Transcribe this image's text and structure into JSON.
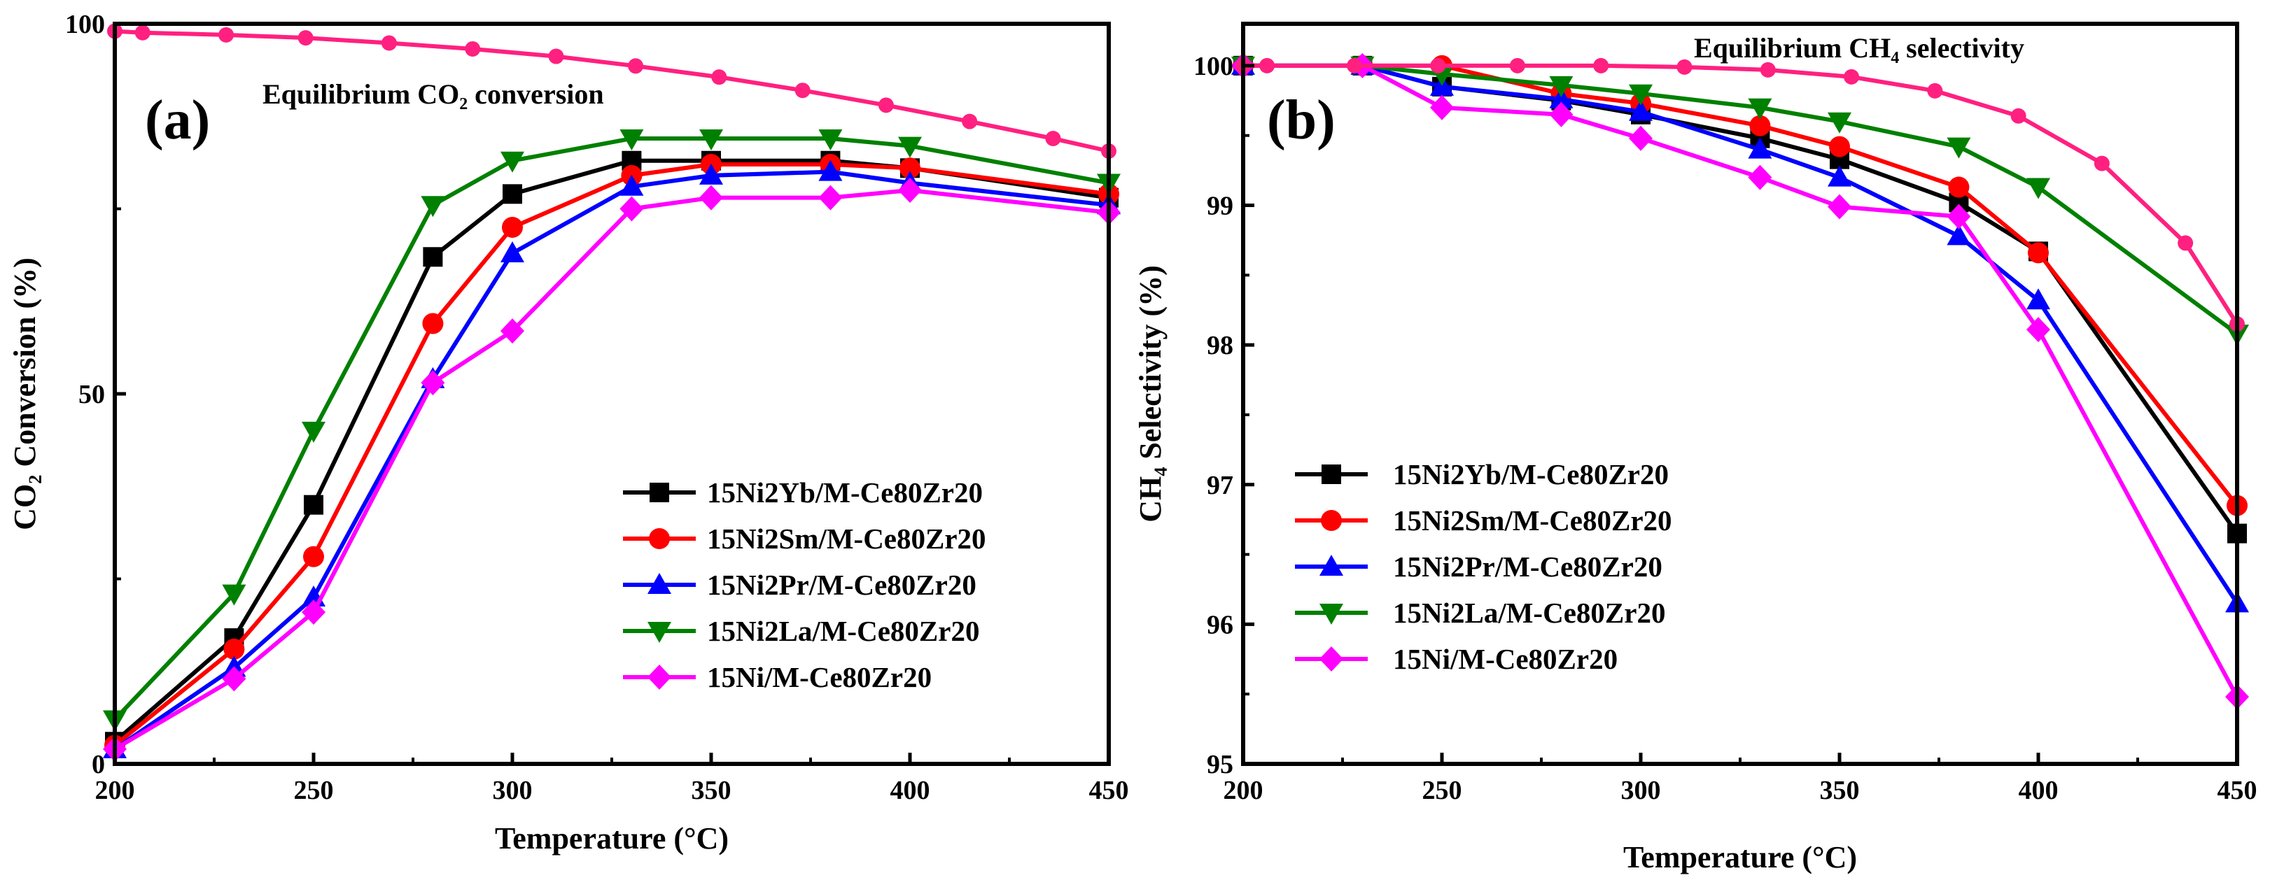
{
  "chart_data": [
    {
      "panel": "(a)",
      "type": "line",
      "title": "",
      "annotation": "Equilibrium CO₂ conversion",
      "xlabel": "Temperature (°C)",
      "ylabel": "CO₂ Conversion (%)",
      "xlim": [
        200,
        450
      ],
      "ylim": [
        0,
        100
      ],
      "xticks": [
        "200",
        "250",
        "300",
        "350",
        "400",
        "450"
      ],
      "yticks": [
        "0",
        "50",
        "100"
      ],
      "legend_position": "bottom-right",
      "series": [
        {
          "name": "15Ni2Yb/M-Ce80Zr20",
          "color": "#000000",
          "marker": "square",
          "x": [
            200,
            230,
            250,
            280,
            300,
            330,
            350,
            380,
            400,
            450
          ],
          "y": [
            3,
            17,
            35,
            68.5,
            77,
            81.5,
            81.5,
            81.5,
            80.5,
            76.5
          ]
        },
        {
          "name": "15Ni2Sm/M-Ce80Zr20",
          "color": "#ff0000",
          "marker": "circle",
          "x": [
            200,
            230,
            250,
            280,
            300,
            330,
            350,
            380,
            400,
            450
          ],
          "y": [
            2.5,
            15.5,
            28,
            59.5,
            72.5,
            79.5,
            81,
            81,
            80.5,
            77
          ]
        },
        {
          "name": "15Ni2Pr/M-Ce80Zr20",
          "color": "#0000ff",
          "marker": "triangle-up",
          "x": [
            200,
            230,
            250,
            280,
            300,
            330,
            350,
            380,
            400,
            450
          ],
          "y": [
            2,
            13,
            22.5,
            52,
            69,
            78,
            79.5,
            80,
            78.5,
            75.5
          ]
        },
        {
          "name": "15Ni2La/M-Ce80Zr20",
          "color": "#008000",
          "marker": "triangle-down",
          "x": [
            200,
            230,
            250,
            280,
            300,
            330,
            350,
            380,
            400,
            450
          ],
          "y": [
            6,
            23,
            45,
            75.5,
            81.5,
            84.5,
            84.5,
            84.5,
            83.5,
            78.5
          ]
        },
        {
          "name": "15Ni/M-Ce80Zr20",
          "color": "#ff00ff",
          "marker": "diamond",
          "x": [
            200,
            230,
            250,
            280,
            300,
            330,
            350,
            380,
            400,
            450
          ],
          "y": [
            2,
            11.5,
            20.5,
            51.5,
            58.5,
            75,
            76.5,
            76.5,
            77.5,
            74.5
          ]
        },
        {
          "name": "Equilibrium CO₂ conversion",
          "color": "#ff2080",
          "marker": "circle-small",
          "legend": false,
          "x": [
            200,
            207,
            228,
            248,
            269,
            290,
            311,
            331,
            352,
            373,
            394,
            415,
            436,
            450
          ],
          "y": [
            99,
            98.8,
            98.5,
            98.1,
            97.4,
            96.6,
            95.6,
            94.3,
            92.8,
            91,
            89,
            86.8,
            84.5,
            82.8
          ]
        }
      ]
    },
    {
      "panel": "(b)",
      "type": "line",
      "title": "",
      "annotation": "Equilibrium CH₄ selectivity",
      "xlabel": "Temperature (°C)",
      "ylabel": "CH₄ Selectivity (%)",
      "xlim": [
        200,
        450
      ],
      "ylim": [
        95,
        100.3
      ],
      "xticks": [
        "200",
        "250",
        "300",
        "350",
        "400",
        "450"
      ],
      "yticks": [
        "95",
        "96",
        "97",
        "98",
        "99",
        "100"
      ],
      "legend_position": "bottom-left",
      "series": [
        {
          "name": "15Ni2Yb/M-Ce80Zr20",
          "color": "#000000",
          "marker": "square",
          "x": [
            200,
            230,
            250,
            280,
            300,
            330,
            350,
            380,
            400,
            450
          ],
          "y": [
            100,
            100,
            99.85,
            99.75,
            99.65,
            99.48,
            99.33,
            99.02,
            98.67,
            96.65
          ]
        },
        {
          "name": "15Ni2Sm/M-Ce80Zr20",
          "color": "#ff0000",
          "marker": "circle",
          "x": [
            200,
            230,
            250,
            280,
            300,
            330,
            350,
            380,
            400,
            450
          ],
          "y": [
            100,
            100,
            100,
            99.8,
            99.73,
            99.57,
            99.42,
            99.13,
            98.66,
            96.85
          ]
        },
        {
          "name": "15Ni2Pr/M-Ce80Zr20",
          "color": "#0000ff",
          "marker": "triangle-up",
          "x": [
            200,
            230,
            250,
            280,
            300,
            330,
            350,
            380,
            400,
            450
          ],
          "y": [
            100,
            100,
            99.85,
            99.76,
            99.67,
            99.4,
            99.2,
            98.78,
            98.32,
            96.15
          ]
        },
        {
          "name": "15Ni2La/M-Ce80Zr20",
          "color": "#008000",
          "marker": "triangle-down",
          "x": [
            200,
            230,
            250,
            280,
            300,
            330,
            350,
            380,
            400,
            450
          ],
          "y": [
            100,
            100,
            99.94,
            99.86,
            99.8,
            99.7,
            99.6,
            99.42,
            99.13,
            98.08
          ]
        },
        {
          "name": "15Ni/M-Ce80Zr20",
          "color": "#ff00ff",
          "marker": "diamond",
          "x": [
            200,
            230,
            250,
            280,
            300,
            330,
            350,
            380,
            400,
            450
          ],
          "y": [
            100,
            100,
            99.7,
            99.65,
            99.48,
            99.2,
            98.99,
            98.92,
            98.11,
            95.48
          ]
        },
        {
          "name": "Equilibrium CH₄ selectivity",
          "color": "#ff2080",
          "marker": "circle-small",
          "legend": false,
          "x": [
            200,
            206,
            228,
            249,
            269,
            290,
            311,
            332,
            353,
            374,
            395,
            416,
            437,
            450
          ],
          "y": [
            100,
            100,
            100,
            100,
            100,
            100,
            99.99,
            99.97,
            99.92,
            99.82,
            99.64,
            99.3,
            98.73,
            98.15
          ]
        }
      ]
    }
  ]
}
